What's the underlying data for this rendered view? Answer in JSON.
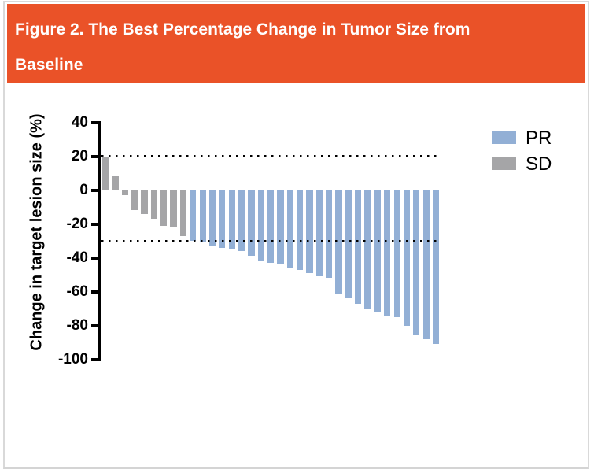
{
  "header": {
    "title_line1": "Figure 2. The Best Percentage Change in Tumor Size from",
    "title_line2": "Baseline"
  },
  "colors": {
    "header_bg": "#ea5228",
    "panel_border": "#d9d9d9",
    "pr_blue": "#92afd5",
    "sd_gray": "#a5a5a7",
    "axis_black": "#000000"
  },
  "chart_data": {
    "type": "bar",
    "subtype": "waterfall",
    "title": "",
    "xlabel": "",
    "ylabel": "Change in target lesion size (%)",
    "ylim": [
      -100,
      40
    ],
    "yticks": [
      40,
      20,
      0,
      -20,
      -40,
      -60,
      -80,
      -100
    ],
    "reference_lines": [
      20,
      -30
    ],
    "grid": false,
    "legend_position": "upper-right",
    "legend": [
      {
        "label": "PR",
        "color": "#92afd5"
      },
      {
        "label": "SD",
        "color": "#a5a5a7"
      }
    ],
    "series": [
      {
        "name": "SD",
        "color": "#a5a5a7",
        "values": [
          20,
          8,
          -3,
          -12,
          -14,
          -17,
          -21,
          -22,
          -27
        ]
      },
      {
        "name": "PR",
        "color": "#92afd5",
        "values": [
          -30,
          -31,
          -33,
          -34,
          -35,
          -36,
          -39,
          -42,
          -43,
          -44,
          -46,
          -47,
          -49,
          -51,
          -52,
          -61,
          -64,
          -67,
          -70,
          -72,
          -74,
          -75,
          -80,
          -86,
          -88,
          -91
        ]
      }
    ]
  }
}
